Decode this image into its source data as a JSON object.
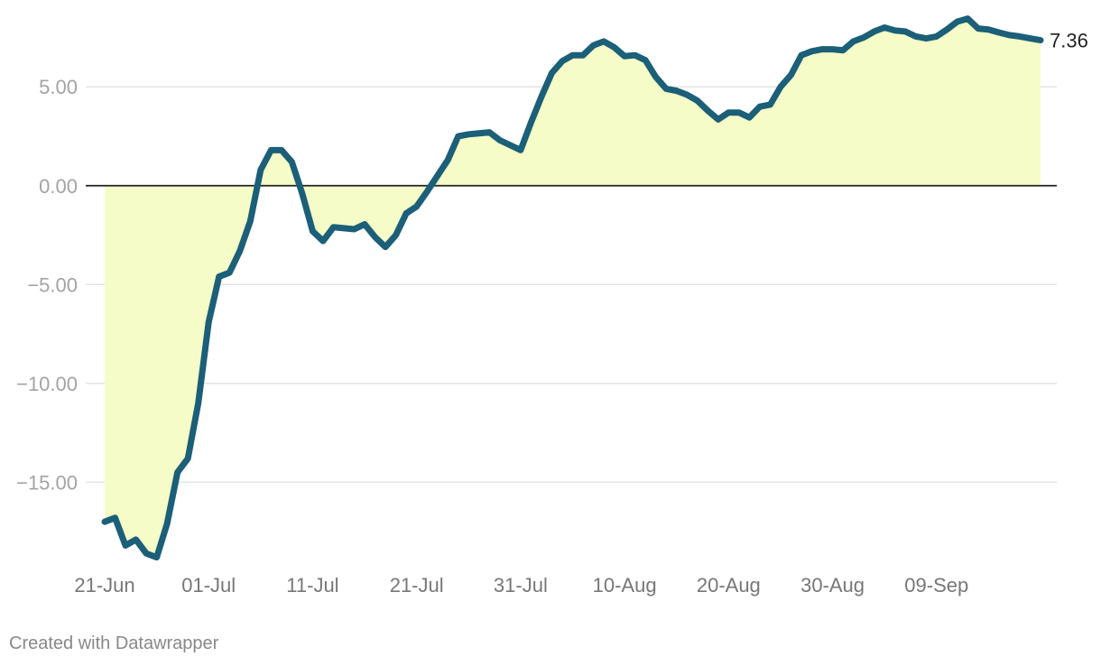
{
  "credit": "Created with Datawrapper",
  "chart_data": {
    "type": "area",
    "title": "",
    "xlabel": "",
    "ylabel": "",
    "ylim": [
      -19,
      8.8
    ],
    "yticks": [
      5,
      0,
      -5,
      -10,
      -15
    ],
    "ytick_labels": [
      "5.00",
      "0.00",
      "−5.00",
      "−10.00",
      "−15.00"
    ],
    "xticks": [
      {
        "date": "2020-06-21",
        "label": "21-Jun"
      },
      {
        "date": "2020-07-01",
        "label": "01-Jul"
      },
      {
        "date": "2020-07-11",
        "label": "11-Jul"
      },
      {
        "date": "2020-07-21",
        "label": "21-Jul"
      },
      {
        "date": "2020-07-31",
        "label": "31-Jul"
      },
      {
        "date": "2020-08-10",
        "label": "10-Aug"
      },
      {
        "date": "2020-08-20",
        "label": "20-Aug"
      },
      {
        "date": "2020-08-30",
        "label": "30-Aug"
      },
      {
        "date": "2020-09-09",
        "label": "09-Sep"
      }
    ],
    "grid": true,
    "baseline": 0,
    "line_color": "#1b5f78",
    "fill_color": "#f6fcc7",
    "end_label": "7.36",
    "series": [
      {
        "x": [
          "2020-06-21",
          "2020-06-22",
          "2020-06-23",
          "2020-06-24",
          "2020-06-25",
          "2020-06-26",
          "2020-06-27",
          "2020-06-28",
          "2020-06-29",
          "2020-06-30",
          "2020-07-01",
          "2020-07-02",
          "2020-07-03",
          "2020-07-04",
          "2020-07-05",
          "2020-07-06",
          "2020-07-07",
          "2020-07-08",
          "2020-07-09",
          "2020-07-10",
          "2020-07-11",
          "2020-07-12",
          "2020-07-13",
          "2020-07-14",
          "2020-07-15",
          "2020-07-16",
          "2020-07-17",
          "2020-07-18",
          "2020-07-19",
          "2020-07-20",
          "2020-07-21",
          "2020-07-22",
          "2020-07-23",
          "2020-07-24",
          "2020-07-25",
          "2020-07-26",
          "2020-07-27",
          "2020-07-28",
          "2020-07-29",
          "2020-07-30",
          "2020-07-31",
          "2020-08-01",
          "2020-08-02",
          "2020-08-03",
          "2020-08-04",
          "2020-08-05",
          "2020-08-06",
          "2020-08-07",
          "2020-08-08",
          "2020-08-09",
          "2020-08-10",
          "2020-08-11",
          "2020-08-12",
          "2020-08-13",
          "2020-08-14",
          "2020-08-15",
          "2020-08-16",
          "2020-08-17",
          "2020-08-18",
          "2020-08-19",
          "2020-08-20",
          "2020-08-21",
          "2020-08-22",
          "2020-08-23",
          "2020-08-24",
          "2020-08-25",
          "2020-08-26",
          "2020-08-27",
          "2020-08-28",
          "2020-08-29",
          "2020-08-30",
          "2020-08-31",
          "2020-09-01",
          "2020-09-02",
          "2020-09-03",
          "2020-09-04",
          "2020-09-05",
          "2020-09-06",
          "2020-09-07",
          "2020-09-08",
          "2020-09-09",
          "2020-09-10",
          "2020-09-11",
          "2020-09-12",
          "2020-09-13",
          "2020-09-14",
          "2020-09-15",
          "2020-09-16",
          "2020-09-17",
          "2020-09-18",
          "2020-09-19"
        ],
        "values": [
          -17.0,
          -16.8,
          -18.2,
          -17.9,
          -18.6,
          -18.8,
          -17.1,
          -14.5,
          -13.8,
          -11.0,
          -6.9,
          -4.6,
          -4.4,
          -3.3,
          -1.8,
          0.8,
          1.8,
          1.8,
          1.2,
          -0.4,
          -2.3,
          -2.8,
          -2.1,
          -2.15,
          -2.2,
          -1.95,
          -2.6,
          -3.1,
          -2.5,
          -1.4,
          -1.05,
          -0.3,
          0.5,
          1.3,
          2.5,
          2.6,
          2.65,
          2.7,
          2.3,
          2.05,
          1.8,
          3.2,
          4.5,
          5.7,
          6.3,
          6.6,
          6.6,
          7.1,
          7.3,
          7.0,
          6.55,
          6.6,
          6.35,
          5.5,
          4.9,
          4.8,
          4.6,
          4.3,
          3.8,
          3.35,
          3.7,
          3.7,
          3.45,
          4.0,
          4.1,
          5.0,
          5.6,
          6.6,
          6.8,
          6.9,
          6.9,
          6.85,
          7.3,
          7.5,
          7.8,
          8.0,
          7.85,
          7.8,
          7.55,
          7.45,
          7.55,
          7.9,
          8.3,
          8.45,
          7.95,
          7.9,
          7.75,
          7.62,
          7.55,
          7.45,
          7.36
        ]
      }
    ]
  }
}
